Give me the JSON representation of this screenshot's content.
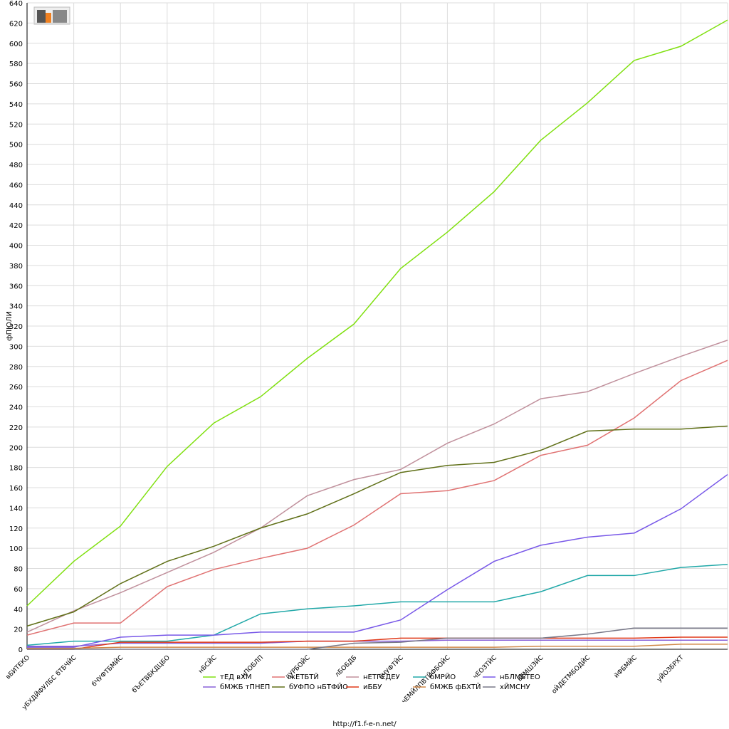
{
  "chart_data": {
    "type": "line",
    "y_label": "фПЮЛИ",
    "footer": "http://f1.f-e-n.net/",
    "categories": [
      "вБИТЕКО",
      "уБХДЙФУЛБС бТБЧЙС",
      "бЧУФТБМЙС",
      "бЪЕТВБКДЦБО",
      "нБСЙС",
      "нПОБЛП",
      "йУРБОЙС",
      "лБОБДБ",
      "бЧУФТЙС",
      "чЕМЙЛПВТЙФБОЙС",
      "чЕОЗТЙС",
      "вЕМШЗЙС",
      "оЙДЕТМБОДЙС",
      "йФБМЙС",
      "уЙОЗБРХТ",
      null
    ],
    "ylim": [
      0,
      640
    ],
    "yticks": [
      0,
      20,
      40,
      60,
      80,
      100,
      120,
      140,
      160,
      180,
      200,
      220,
      240,
      260,
      280,
      300,
      320,
      340,
      360,
      380,
      400,
      420,
      440,
      460,
      480,
      500,
      520,
      540,
      560,
      580,
      600,
      620,
      640
    ],
    "grid": true,
    "series": [
      {
        "name": "тЕД вХМ",
        "color": "#80e010",
        "values": [
          43,
          87,
          122,
          181,
          224,
          250,
          288,
          322,
          377,
          413,
          453,
          504,
          541,
          583,
          597,
          623
        ]
      },
      {
        "name": "жЕТБТЙ",
        "color": "#e07272",
        "values": [
          14,
          26,
          26,
          62,
          79,
          90,
          100,
          123,
          154,
          157,
          167,
          192,
          202,
          229,
          266,
          286
        ]
      },
      {
        "name": "нЕТГЕДЕУ",
        "color": "#c0909c",
        "values": [
          17,
          38,
          56,
          76,
          96,
          120,
          152,
          168,
          178,
          204,
          223,
          248,
          255,
          273,
          290,
          306
        ]
      },
      {
        "name": "бМРЙО",
        "color": "#20a8a8",
        "values": [
          4,
          8,
          8,
          8,
          14,
          35,
          40,
          43,
          47,
          47,
          47,
          57,
          73,
          73,
          81,
          84
        ]
      },
      {
        "name": "нБЛМБТЕО",
        "color": "#7858e8",
        "values": [
          2,
          2,
          12,
          14,
          14,
          17,
          17,
          17,
          29,
          59,
          87,
          103,
          111,
          115,
          139,
          173
        ]
      },
      {
        "name": "бМЖБ тПНЕП",
        "color": "#8860d8",
        "values": [
          3,
          3,
          6,
          6,
          6,
          6,
          8,
          8,
          8,
          9,
          9,
          9,
          9,
          9,
          9,
          9
        ]
      },
      {
        "name": "бУФПО нБТФЙО",
        "color": "#607018",
        "values": [
          23,
          37,
          65,
          87,
          102,
          120,
          134,
          154,
          175,
          182,
          185,
          197,
          216,
          218,
          218,
          221
        ]
      },
      {
        "name": "иББУ",
        "color": "#e03818",
        "values": [
          0,
          0,
          7,
          7,
          7,
          7,
          8,
          8,
          11,
          11,
          11,
          11,
          11,
          11,
          12,
          12
        ]
      },
      {
        "name": "бМЖБ фБХТЙ",
        "color": "#d08848",
        "values": [
          1,
          1,
          2,
          2,
          2,
          2,
          2,
          2,
          2,
          2,
          2,
          3,
          3,
          3,
          5,
          5
        ]
      },
      {
        "name": "хЙМСНУ",
        "color": "#787888",
        "values": [
          0,
          0,
          0,
          0,
          0,
          0,
          0,
          6,
          7,
          11,
          11,
          11,
          15,
          21,
          21,
          21
        ]
      }
    ]
  }
}
